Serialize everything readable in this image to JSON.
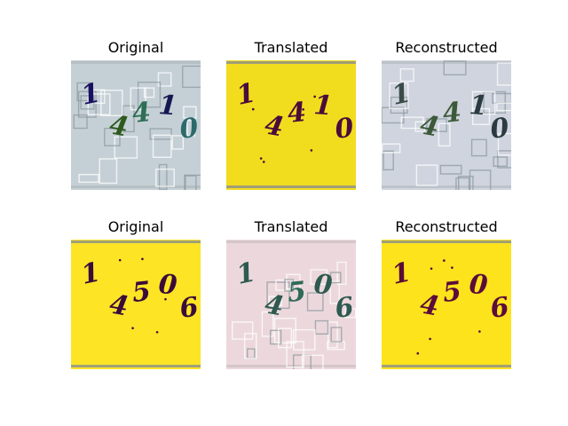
{
  "figure": {
    "rows": [
      {
        "panels": [
          {
            "title": "Original",
            "background": "#c5d0d6",
            "style": "clutter",
            "digits": [
              "1",
              "4",
              "4",
              "1",
              "0"
            ],
            "digit_colors": [
              "#1a1060",
              "#2f5a1e",
              "#2e6e55",
              "#141850",
              "#2b6a6a"
            ]
          },
          {
            "title": "Translated",
            "background": "#f2dc1e",
            "style": "sparse",
            "digits": [
              "1",
              "4",
              "4",
              "1",
              "0"
            ],
            "digit_colors": [
              "#4a0c3a",
              "#4a0c3a",
              "#4a0c3a",
              "#4a0c3a",
              "#4a0c3a"
            ]
          },
          {
            "title": "Reconstructed",
            "background": "#cfd4de",
            "style": "clutter",
            "digits": [
              "1",
              "4",
              "4",
              "1",
              "0"
            ],
            "digit_colors": [
              "#3a4b48",
              "#3c5a3a",
              "#3c5a3a",
              "#2a3a40",
              "#2a3a40"
            ]
          }
        ]
      },
      {
        "panels": [
          {
            "title": "Original",
            "background": "#fde526",
            "style": "sparse",
            "digits": [
              "1",
              "4",
              "5",
              "0",
              "6"
            ],
            "digit_colors": [
              "#3a0c3a",
              "#3a0c3a",
              "#3a0c3a",
              "#3a0c3a",
              "#3a0c3a"
            ]
          },
          {
            "title": "Translated",
            "background": "#ecd8dc",
            "style": "clutter",
            "digits": [
              "1",
              "4",
              "5",
              "0",
              "6"
            ],
            "digit_colors": [
              "#2e5a50",
              "#2e5a50",
              "#2e6a58",
              "#2e5a50",
              "#2e5a50"
            ]
          },
          {
            "title": "Reconstructed",
            "background": "#fde31c",
            "style": "sparse",
            "digits": [
              "1",
              "4",
              "5",
              "0",
              "6"
            ],
            "digit_colors": [
              "#5a0c3a",
              "#5a0c3a",
              "#5a0c3a",
              "#5a0c3a",
              "#5a0c3a"
            ]
          }
        ]
      }
    ]
  }
}
